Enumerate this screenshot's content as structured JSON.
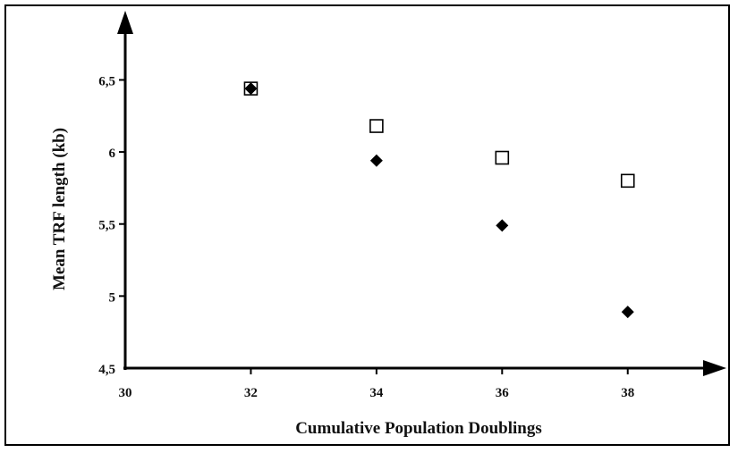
{
  "chart_data": {
    "type": "scatter",
    "xlabel": "Cumulative Population Doublings",
    "ylabel": "Mean TRF length (kb)",
    "xlim": [
      30,
      39.2
    ],
    "ylim": [
      4.5,
      6.85
    ],
    "x_ticks": [
      30,
      32,
      34,
      36,
      38
    ],
    "x_tick_labels": [
      "30",
      "32",
      "34",
      "36",
      "38"
    ],
    "y_ticks": [
      4.5,
      5,
      5.5,
      6,
      6.5
    ],
    "y_tick_labels": [
      "4,5",
      "5",
      "5,5",
      "6",
      "6,5"
    ],
    "grid": false,
    "series": [
      {
        "marker": "open-square",
        "color": "#000000",
        "points": [
          {
            "x": 32,
            "y": 6.44
          },
          {
            "x": 34,
            "y": 6.18
          },
          {
            "x": 36,
            "y": 5.96
          },
          {
            "x": 38,
            "y": 5.8
          }
        ]
      },
      {
        "marker": "filled-diamond",
        "color": "#000000",
        "points": [
          {
            "x": 32,
            "y": 6.44
          },
          {
            "x": 34,
            "y": 5.94
          },
          {
            "x": 36,
            "y": 5.49
          },
          {
            "x": 38,
            "y": 4.89
          }
        ]
      }
    ]
  }
}
